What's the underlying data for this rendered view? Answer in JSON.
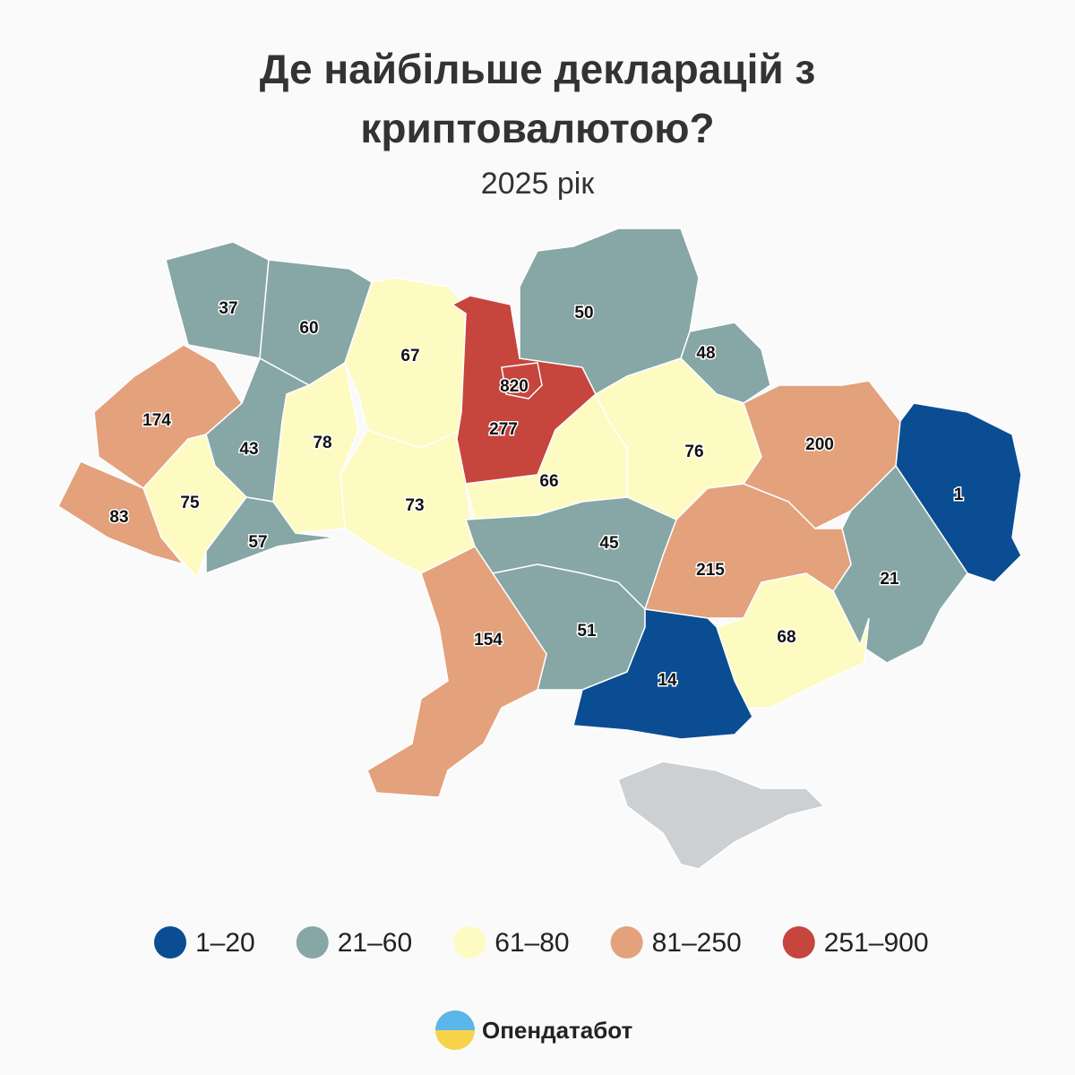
{
  "title": "Де найбільше декларацій з криптовалютою?",
  "subtitle": "2025 рік",
  "regions": [
    {
      "value": 37
    },
    {
      "value": 60
    },
    {
      "value": 174
    },
    {
      "value": 43
    },
    {
      "value": 75
    },
    {
      "value": 83
    },
    {
      "value": 57
    },
    {
      "value": 78
    },
    {
      "value": 67
    },
    {
      "value": 73
    },
    {
      "value": 277
    },
    {
      "value": 820
    },
    {
      "value": 50
    },
    {
      "value": 48
    },
    {
      "value": 66
    },
    {
      "value": 76
    },
    {
      "value": 200
    },
    {
      "value": 1
    },
    {
      "value": 21
    },
    {
      "value": 215
    },
    {
      "value": 68
    },
    {
      "value": 45
    },
    {
      "value": 51
    },
    {
      "value": 14
    },
    {
      "value": 154
    }
  ],
  "legend": [
    {
      "label": "1–20",
      "min": 1,
      "max": 20,
      "color": "#0b4d92"
    },
    {
      "label": "21–60",
      "min": 21,
      "max": 60,
      "color": "#87a6a6"
    },
    {
      "label": "61–80",
      "min": 61,
      "max": 80,
      "color": "#fdfbc2"
    },
    {
      "label": "81–250",
      "min": 81,
      "max": 250,
      "color": "#e3a17c"
    },
    {
      "label": "251–900",
      "min": 251,
      "max": 900,
      "color": "#c6453c"
    }
  ],
  "brand": "Опендатабот"
}
